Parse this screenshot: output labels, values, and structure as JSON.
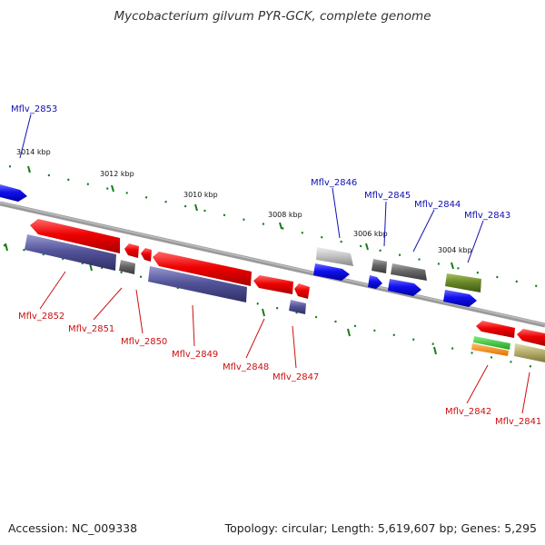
{
  "title": "Mycobacterium gilvum PYR-GCK, complete genome",
  "footer": {
    "accession": "Accession: NC_009338",
    "summary": "Topology: circular; Length: 5,619,607 bp; Genes: 5,295"
  },
  "colors": {
    "backbone": "#888888",
    "ticks": "#1a7a1a",
    "label_forward": "#1010b0",
    "label_reverse": "#cc1010"
  },
  "kbp_labels": [
    "3014 kbp",
    "3012 kbp",
    "3010 kbp",
    "3008 kbp",
    "3006 kbp",
    "3004 kbp"
  ],
  "genes_forward": [
    {
      "label": "Mflv_2853"
    },
    {
      "label": "Mflv_2846"
    },
    {
      "label": "Mflv_2845"
    },
    {
      "label": "Mflv_2844"
    },
    {
      "label": "Mflv_2843"
    }
  ],
  "genes_reverse": [
    {
      "label": "Mflv_2852"
    },
    {
      "label": "Mflv_2851"
    },
    {
      "label": "Mflv_2850"
    },
    {
      "label": "Mflv_2849"
    },
    {
      "label": "Mflv_2848"
    },
    {
      "label": "Mflv_2847"
    },
    {
      "label": "Mflv_2842"
    },
    {
      "label": "Mflv_2841"
    }
  ]
}
